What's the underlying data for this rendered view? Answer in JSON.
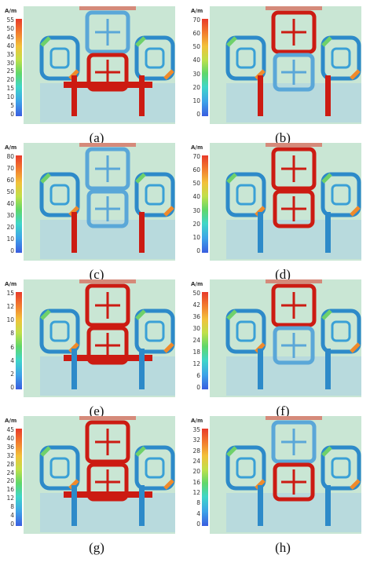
{
  "panels": [
    {
      "caption": "(a)",
      "unit": "A/m",
      "ticks": [
        "55",
        "50",
        "45",
        "40",
        "35",
        "30",
        "25",
        "20",
        "15",
        "10",
        "5",
        "0"
      ]
    },
    {
      "caption": "(b)",
      "unit": "A/m",
      "ticks": [
        "70",
        "60",
        "50",
        "40",
        "30",
        "20",
        "10",
        "0"
      ]
    },
    {
      "caption": "(c)",
      "unit": "A/m",
      "ticks": [
        "80",
        "70",
        "60",
        "50",
        "40",
        "30",
        "20",
        "10",
        "0"
      ]
    },
    {
      "caption": "(d)",
      "unit": "A/m",
      "ticks": [
        "70",
        "60",
        "50",
        "40",
        "30",
        "20",
        "10",
        "0"
      ]
    },
    {
      "caption": "(e)",
      "unit": "A/m",
      "ticks": [
        "15",
        "12",
        "10",
        "8",
        "6",
        "4",
        "2",
        "0"
      ]
    },
    {
      "caption": "(f)",
      "unit": "A/m",
      "ticks": [
        "50",
        "42",
        "36",
        "30",
        "24",
        "18",
        "12",
        "6",
        "0"
      ]
    },
    {
      "caption": "(g)",
      "unit": "A/m",
      "ticks": [
        "45",
        "40",
        "36",
        "32",
        "28",
        "24",
        "20",
        "16",
        "12",
        "8",
        "4",
        "0"
      ]
    },
    {
      "caption": "(h)",
      "unit": "A/m",
      "ticks": [
        "35",
        "32",
        "28",
        "24",
        "20",
        "16",
        "12",
        "8",
        "4",
        "0"
      ]
    }
  ],
  "colors": {
    "hot": "#cc1b12",
    "warm": "#f08a2a",
    "mid": "#6fd16a",
    "cool": "#3b8fe0",
    "background": "#c9e6d4"
  }
}
